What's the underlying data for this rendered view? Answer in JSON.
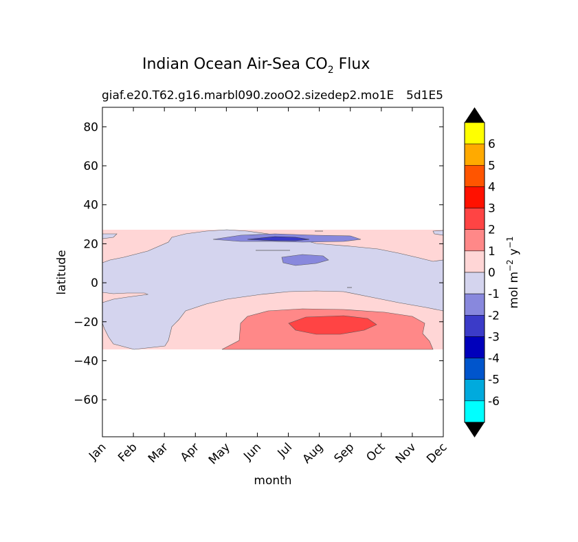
{
  "chart_data": {
    "type": "contourf",
    "title_main": "Indian Ocean Air-Sea CO",
    "title_sub_script": "2",
    "title_suffix": "Flux",
    "subtitle_left": "giaf.e20.T62.g16.marbl090.zooO2.sizedep2.mo1E",
    "subtitle_right": "5d1E5",
    "xlabel": "month",
    "ylabel": "latitude",
    "x_ticks": [
      "Jan",
      "Feb",
      "Mar",
      "Apr",
      "May",
      "Jun",
      "Jul",
      "Aug",
      "Sep",
      "Oct",
      "Nov",
      "Dec"
    ],
    "y_ticks": [
      80,
      60,
      40,
      20,
      0,
      -20,
      -40,
      -60
    ],
    "y_tick_labels": [
      "80",
      "60",
      "40",
      "20",
      "0",
      "−20",
      "−40",
      "−60"
    ],
    "xlim": [
      0,
      11
    ],
    "ylim": [
      -79,
      90
    ],
    "data_lat_range": [
      -34,
      27
    ],
    "colorbar": {
      "label": "mol m",
      "label_exp1": "−2",
      "label_mid": "y",
      "label_exp2": "−1",
      "levels": [
        "6",
        "5",
        "4",
        "3",
        "2",
        "1",
        "0",
        "-1",
        "-2",
        "-3",
        "-4",
        "-5",
        "-6"
      ],
      "colors": [
        "#ffff00",
        "#ffaa00",
        "#ff5500",
        "#ff1100",
        "#ff4444",
        "#ff8888",
        "#ffd6d6",
        "#d4d4ee",
        "#8888dd",
        "#3b3bc8",
        "#0000bb",
        "#0055cc",
        "#00aadd",
        "#00ffff"
      ],
      "extend_color": "#000000"
    },
    "regions": [
      {
        "name": "background-positive",
        "value_range": "0 to 1",
        "color": "#ffd6d6"
      },
      {
        "name": "negative-band",
        "value_range": "-1 to 0",
        "color": "#d4d4ee"
      },
      {
        "name": "north-low-patch",
        "value_range": "-2 to -1",
        "color": "#8888dd"
      },
      {
        "name": "north-core",
        "value_range": "-3 to -2",
        "color": "#3b3bc8"
      },
      {
        "name": "south-high-band",
        "value_range": "1 to 2",
        "color": "#ff8888"
      },
      {
        "name": "south-core",
        "value_range": "2 to 3",
        "color": "#ff4444"
      }
    ]
  }
}
